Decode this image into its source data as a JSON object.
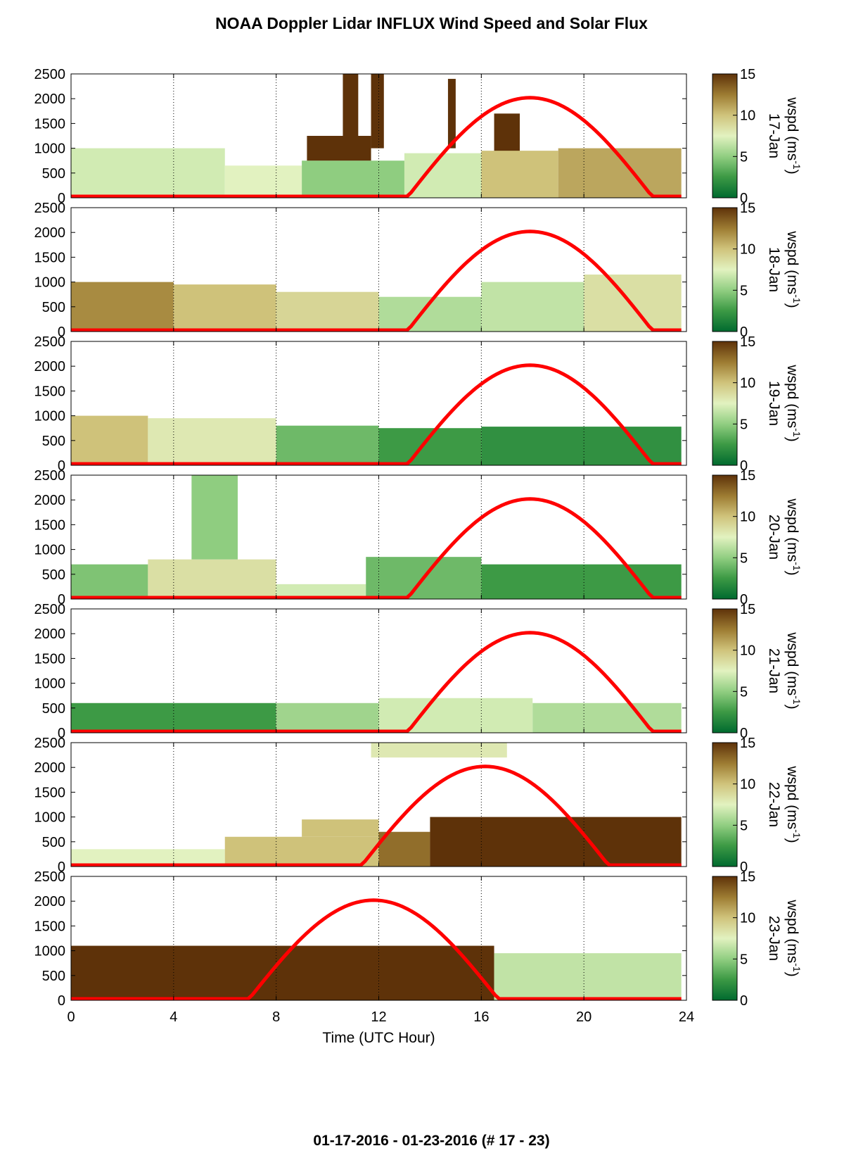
{
  "title": "NOAA Doppler Lidar INFLUX Wind Speed and Solar Flux",
  "footer": "01-17-2016 - 01-23-2016   (# 17 - 23)",
  "colors": {
    "solar_curve": "#ff0000",
    "colormap": [
      "#006a2f",
      "#3d9a45",
      "#8fcd80",
      "#e2f2c0",
      "#cfc27a",
      "#9e7d33",
      "#5e3209"
    ]
  },
  "chart_data": {
    "type": "heatmap",
    "xlabel": "Time (UTC Hour)",
    "xlim": [
      0,
      24
    ],
    "xticks": [
      0,
      4,
      8,
      12,
      16,
      20,
      24
    ],
    "ylim": [
      0,
      2500
    ],
    "yticks": [
      0,
      500,
      1000,
      1500,
      2000,
      2500
    ],
    "colorbar": {
      "label": "wspd (ms-1)",
      "range": [
        0,
        15
      ],
      "ticks": [
        0,
        5,
        10,
        15
      ]
    },
    "grid": "vertical dotted lines at 4, 8, 12, 16, 20",
    "panels": [
      {
        "date": "17-Jan",
        "solar_flux_curve": {
          "start_hour": 13.1,
          "peak_hour": 17.9,
          "end_hour": 22.7,
          "peak_value": 2020
        },
        "wind": [
          {
            "t0": 0,
            "t1": 6,
            "h0": 0,
            "h1": 1000,
            "wspd": 7
          },
          {
            "t0": 6,
            "t1": 9,
            "h0": 0,
            "h1": 650,
            "wspd": 7.5
          },
          {
            "t0": 9,
            "t1": 13,
            "h0": 0,
            "h1": 750,
            "wspd": 5
          },
          {
            "t0": 9.2,
            "t1": 11.7,
            "h0": 750,
            "h1": 1250,
            "wspd": 15
          },
          {
            "t0": 10.6,
            "t1": 11.2,
            "h0": 1250,
            "h1": 2500,
            "wspd": 15
          },
          {
            "t0": 11.7,
            "t1": 12.2,
            "h0": 1000,
            "h1": 2500,
            "wspd": 15
          },
          {
            "t0": 13,
            "t1": 16,
            "h0": 0,
            "h1": 900,
            "wspd": 7
          },
          {
            "t0": 14.7,
            "t1": 15,
            "h0": 1000,
            "h1": 2400,
            "wspd": 15
          },
          {
            "t0": 16.5,
            "t1": 17.5,
            "h0": 900,
            "h1": 1700,
            "wspd": 15
          },
          {
            "t0": 16,
            "t1": 19,
            "h0": 0,
            "h1": 950,
            "wspd": 10
          },
          {
            "t0": 19,
            "t1": 23.8,
            "h0": 0,
            "h1": 1000,
            "wspd": 11
          }
        ]
      },
      {
        "date": "18-Jan",
        "solar_flux_curve": {
          "start_hour": 13.1,
          "peak_hour": 17.9,
          "end_hour": 22.7,
          "peak_value": 2020
        },
        "wind": [
          {
            "t0": 0,
            "t1": 4,
            "h0": 0,
            "h1": 1000,
            "wspd": 12
          },
          {
            "t0": 4,
            "t1": 8,
            "h0": 0,
            "h1": 950,
            "wspd": 10
          },
          {
            "t0": 8,
            "t1": 12,
            "h0": 0,
            "h1": 800,
            "wspd": 9
          },
          {
            "t0": 12,
            "t1": 16,
            "h0": 0,
            "h1": 700,
            "wspd": 6
          },
          {
            "t0": 16,
            "t1": 20,
            "h0": 0,
            "h1": 1000,
            "wspd": 6.5
          },
          {
            "t0": 20,
            "t1": 23.8,
            "h0": 0,
            "h1": 1150,
            "wspd": 8.5
          }
        ]
      },
      {
        "date": "19-Jan",
        "solar_flux_curve": {
          "start_hour": 13.1,
          "peak_hour": 17.9,
          "end_hour": 22.7,
          "peak_value": 2020
        },
        "wind": [
          {
            "t0": 0,
            "t1": 3,
            "h0": 0,
            "h1": 1000,
            "wspd": 10
          },
          {
            "t0": 3,
            "t1": 8,
            "h0": 0,
            "h1": 950,
            "wspd": 8
          },
          {
            "t0": 8,
            "t1": 12,
            "h0": 0,
            "h1": 800,
            "wspd": 4
          },
          {
            "t0": 12,
            "t1": 16,
            "h0": 0,
            "h1": 750,
            "wspd": 2.5
          },
          {
            "t0": 16,
            "t1": 23.8,
            "h0": 0,
            "h1": 780,
            "wspd": 2
          }
        ]
      },
      {
        "date": "20-Jan",
        "solar_flux_curve": {
          "start_hour": 13.1,
          "peak_hour": 17.9,
          "end_hour": 22.7,
          "peak_value": 2020
        },
        "wind": [
          {
            "t0": 0,
            "t1": 3,
            "h0": 0,
            "h1": 700,
            "wspd": 4.5
          },
          {
            "t0": 3,
            "t1": 8,
            "h0": 0,
            "h1": 800,
            "wspd": 8.5
          },
          {
            "t0": 4.7,
            "t1": 6.5,
            "h0": 800,
            "h1": 2500,
            "wspd": 5
          },
          {
            "t0": 8,
            "t1": 11.5,
            "h0": 0,
            "h1": 300,
            "wspd": 7
          },
          {
            "t0": 11.5,
            "t1": 16,
            "h0": 0,
            "h1": 850,
            "wspd": 4
          },
          {
            "t0": 16,
            "t1": 23.8,
            "h0": 0,
            "h1": 700,
            "wspd": 2.5
          }
        ]
      },
      {
        "date": "21-Jan",
        "solar_flux_curve": {
          "start_hour": 13.1,
          "peak_hour": 17.9,
          "end_hour": 22.7,
          "peak_value": 2020
        },
        "wind": [
          {
            "t0": 0,
            "t1": 8,
            "h0": 0,
            "h1": 600,
            "wspd": 2.5
          },
          {
            "t0": 8,
            "t1": 12,
            "h0": 0,
            "h1": 600,
            "wspd": 5.5
          },
          {
            "t0": 12,
            "t1": 18,
            "h0": 0,
            "h1": 700,
            "wspd": 7
          },
          {
            "t0": 18,
            "t1": 23.8,
            "h0": 0,
            "h1": 600,
            "wspd": 6
          }
        ]
      },
      {
        "date": "22-Jan",
        "solar_flux_curve": {
          "start_hour": 11.3,
          "peak_hour": 16.0,
          "end_hour": 21.0,
          "peak_value": 2020
        },
        "wind": [
          {
            "t0": 0,
            "t1": 6,
            "h0": 0,
            "h1": 350,
            "wspd": 7.5
          },
          {
            "t0": 6,
            "t1": 12,
            "h0": 0,
            "h1": 600,
            "wspd": 10
          },
          {
            "t0": 9,
            "t1": 12,
            "h0": 600,
            "h1": 950,
            "wspd": 10
          },
          {
            "t0": 11.7,
            "t1": 17,
            "h0": 2200,
            "h1": 2500,
            "wspd": 8
          },
          {
            "t0": 12,
            "t1": 14,
            "h0": 0,
            "h1": 700,
            "wspd": 13
          },
          {
            "t0": 14,
            "t1": 23.8,
            "h0": 0,
            "h1": 1000,
            "wspd": 15
          }
        ]
      },
      {
        "date": "23-Jan",
        "solar_flux_curve": {
          "start_hour": 6.9,
          "peak_hour": 11.8,
          "end_hour": 16.7,
          "peak_value": 2020
        },
        "wind": [
          {
            "t0": 0,
            "t1": 16.5,
            "h0": 0,
            "h1": 1100,
            "wspd": 15
          },
          {
            "t0": 16.5,
            "t1": 23.8,
            "h0": 0,
            "h1": 950,
            "wspd": 6.5
          }
        ]
      }
    ]
  }
}
